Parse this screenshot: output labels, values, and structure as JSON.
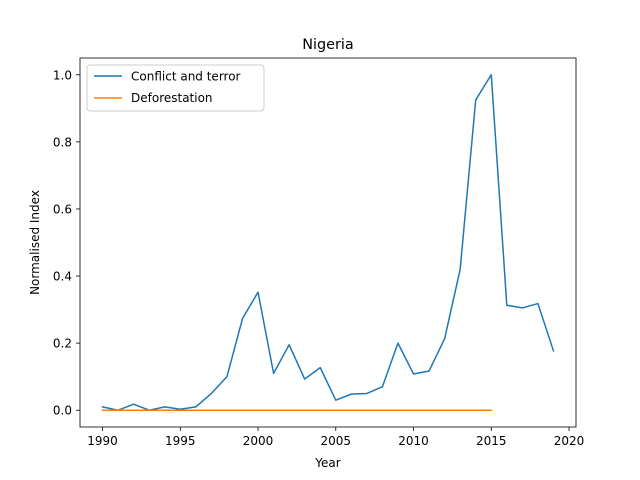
{
  "chart_data": {
    "type": "line",
    "title": "Nigeria",
    "xlabel": "Year",
    "ylabel": "Normalised Index",
    "xlim": [
      1988.55,
      2020.45
    ],
    "ylim": [
      -0.05,
      1.05
    ],
    "xticks": [
      1990,
      1995,
      2000,
      2005,
      2010,
      2015,
      2020
    ],
    "yticks": [
      0.0,
      0.2,
      0.4,
      0.6,
      0.8,
      1.0
    ],
    "xtick_labels": [
      "1990",
      "1995",
      "2000",
      "2005",
      "2010",
      "2015",
      "2020"
    ],
    "ytick_labels": [
      "0.0",
      "0.2",
      "0.4",
      "0.6",
      "0.8",
      "1.0"
    ],
    "grid": false,
    "legend_position": "top-left",
    "series": [
      {
        "name": "Conflict and terror",
        "color": "#1f77b4",
        "x": [
          1990,
          1991,
          1992,
          1993,
          1994,
          1995,
          1996,
          1997,
          1998,
          1999,
          2000,
          2001,
          2002,
          2003,
          2004,
          2005,
          2006,
          2007,
          2008,
          2009,
          2010,
          2011,
          2012,
          2013,
          2014,
          2015,
          2016,
          2017,
          2018,
          2019
        ],
        "y": [
          0.01,
          0.0,
          0.018,
          0.0,
          0.01,
          0.003,
          0.01,
          0.05,
          0.1,
          0.273,
          0.352,
          0.11,
          0.195,
          0.093,
          0.127,
          0.03,
          0.048,
          0.05,
          0.07,
          0.2,
          0.108,
          0.117,
          0.213,
          0.42,
          0.925,
          1.0,
          0.313,
          0.305,
          0.318,
          0.177
        ]
      },
      {
        "name": "Deforestation",
        "color": "#ff7f0e",
        "x": [
          1990,
          1991,
          1992,
          1993,
          1994,
          1995,
          1996,
          1997,
          1998,
          1999,
          2000,
          2001,
          2002,
          2003,
          2004,
          2005,
          2006,
          2007,
          2008,
          2009,
          2010,
          2011,
          2012,
          2013,
          2014,
          2015
        ],
        "y": [
          0,
          0,
          0,
          0,
          0,
          0,
          0,
          0,
          0,
          0,
          0,
          0,
          0,
          0,
          0,
          0,
          0,
          0,
          0,
          0,
          0,
          0,
          0,
          0,
          0,
          0
        ]
      }
    ]
  }
}
